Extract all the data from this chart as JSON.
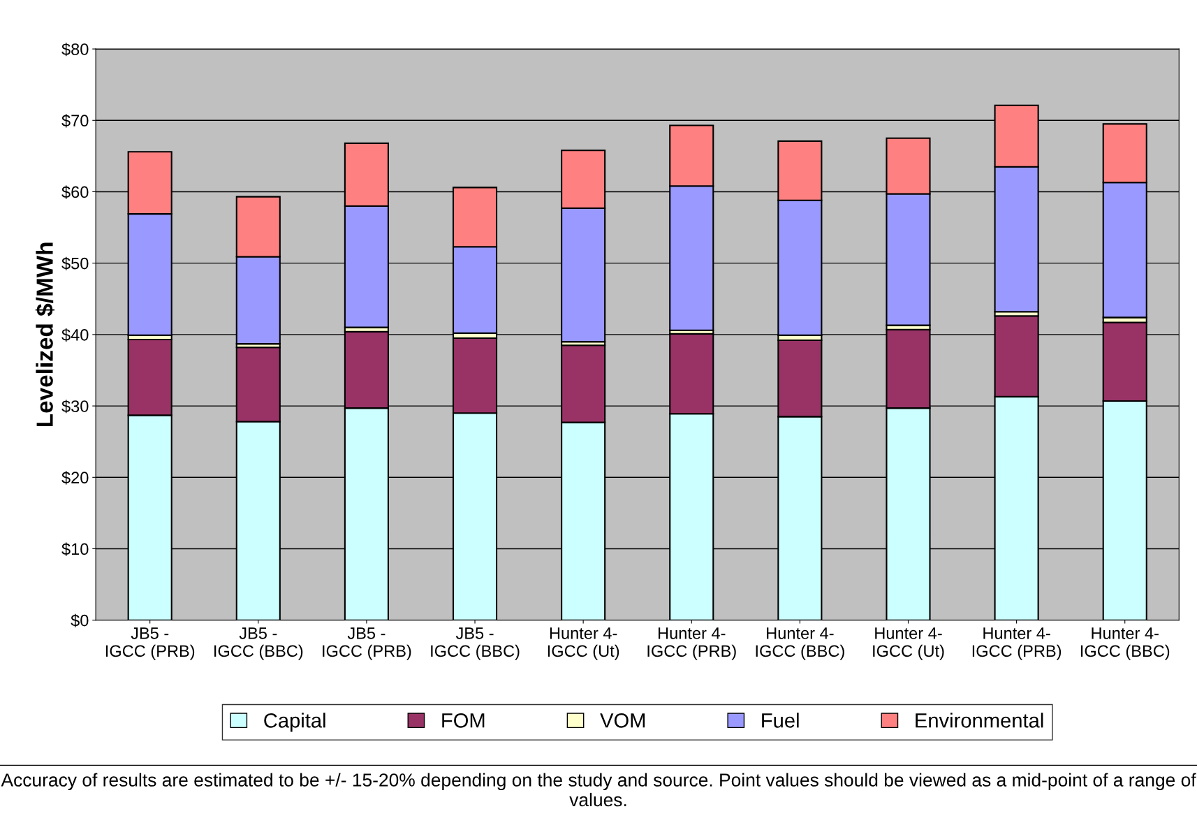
{
  "chart_data": {
    "type": "bar",
    "stacked": true,
    "ylabel": "Levelized $/MWh",
    "categories": [
      "JB5 - IGCC (PRB)",
      "JB5 - IGCC (BBC)",
      "JB5 - IGCC (PRB)",
      "JB5 - IGCC (BBC)",
      "Hunter 4-IGCC (Ut)",
      "Hunter 4-IGCC (PRB)",
      "Hunter 4-IGCC (BBC)",
      "Hunter 4-IGCC (Ut)",
      "Hunter 4-IGCC (PRB)",
      "Hunter 4-IGCC (BBC)"
    ],
    "series": [
      {
        "name": "Capital",
        "color": "#ccffff",
        "values": [
          28.7,
          27.8,
          29.7,
          29.0,
          27.7,
          28.9,
          28.5,
          29.7,
          31.3,
          30.7
        ]
      },
      {
        "name": "FOM",
        "color": "#993366",
        "values": [
          10.6,
          10.4,
          10.7,
          10.5,
          10.8,
          11.2,
          10.7,
          11.0,
          11.3,
          11.0
        ]
      },
      {
        "name": "VOM",
        "color": "#ffffcc",
        "values": [
          0.6,
          0.5,
          0.6,
          0.7,
          0.5,
          0.5,
          0.7,
          0.6,
          0.6,
          0.7
        ]
      },
      {
        "name": "Fuel",
        "color": "#9999ff",
        "values": [
          17.0,
          12.2,
          17.0,
          12.1,
          18.7,
          20.2,
          18.9,
          18.4,
          20.3,
          18.9
        ]
      },
      {
        "name": "Environmental",
        "color": "#ff8080",
        "values": [
          8.7,
          8.4,
          8.8,
          8.3,
          8.1,
          8.5,
          8.3,
          7.8,
          8.6,
          8.2
        ]
      }
    ],
    "ylim": [
      0,
      80
    ],
    "yticks": [
      {
        "value": 0,
        "label": "$0"
      },
      {
        "value": 10,
        "label": "$10"
      },
      {
        "value": 20,
        "label": "$20"
      },
      {
        "value": 30,
        "label": "$30"
      },
      {
        "value": 40,
        "label": "$40"
      },
      {
        "value": 50,
        "label": "$50"
      },
      {
        "value": 60,
        "label": "$60"
      },
      {
        "value": 70,
        "label": "$70"
      },
      {
        "value": 80,
        "label": "$80"
      }
    ],
    "grid": "y",
    "legend": "bottom",
    "annotations": [
      "Accuracy of results are estimated to be +/- 15-20% depending on the study and source. Point values should be viewed as a mid-point of a range of values."
    ]
  }
}
